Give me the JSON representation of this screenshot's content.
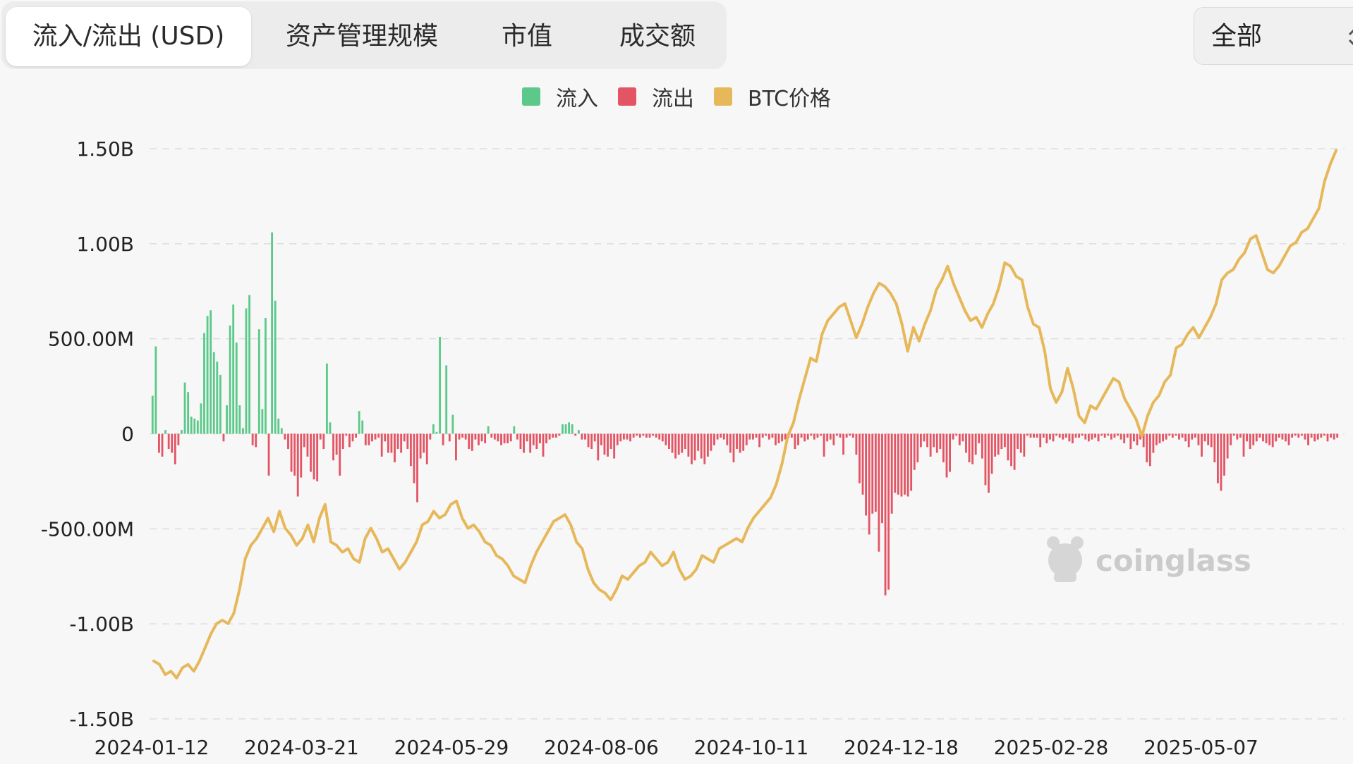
{
  "tabs": [
    {
      "label": "流入/流出 (USD)",
      "active": true
    },
    {
      "label": "资产管理规模",
      "active": false
    },
    {
      "label": "市值",
      "active": false
    },
    {
      "label": "成交额",
      "active": false
    }
  ],
  "filter": {
    "label": "全部"
  },
  "watermark": {
    "text": "coinglass"
  },
  "colors": {
    "inflow": "#5cc98a",
    "outflow": "#e35565",
    "price": "#e6b85a",
    "grid": "#dddddd"
  },
  "chart_data": {
    "type": "bar",
    "legend": [
      "流入",
      "流出",
      "BTC价格"
    ],
    "legend_position": "top-center",
    "grid": true,
    "ylim": [
      -1500000000,
      1500000000
    ],
    "y_ticks": [
      {
        "value": 1500000000,
        "label": "1.50B"
      },
      {
        "value": 1000000000,
        "label": "1.00B"
      },
      {
        "value": 500000000,
        "label": "500.00M"
      },
      {
        "value": 0,
        "label": "0"
      },
      {
        "value": -500000000,
        "label": "-500.00M"
      },
      {
        "value": -1000000000,
        "label": "-1.00B"
      },
      {
        "value": -1500000000,
        "label": "-1.50B"
      }
    ],
    "x_ticks": [
      "2024-01-12",
      "2024-03-21",
      "2024-05-29",
      "2024-08-06",
      "2024-10-11",
      "2024-12-18",
      "2025-02-28",
      "2025-05-07"
    ],
    "x_range": [
      "2024-01-12",
      "2025-07-14"
    ],
    "series": [
      {
        "name": "流入/流出",
        "sample_step": "2 trading days",
        "values_musd": [
          200,
          460,
          -100,
          -120,
          20,
          -80,
          -100,
          -160,
          -60,
          20,
          270,
          220,
          90,
          80,
          70,
          160,
          530,
          620,
          650,
          430,
          380,
          310,
          -40,
          150,
          570,
          680,
          480,
          150,
          30,
          660,
          730,
          -60,
          -70,
          550,
          130,
          610,
          -220,
          1060,
          700,
          80,
          30,
          -30,
          -80,
          -200,
          -220,
          -330,
          -230,
          -70,
          -120,
          -200,
          -240,
          -250,
          -30,
          -80,
          370,
          60,
          -140,
          -110,
          -220,
          -80,
          -10,
          -70,
          -40,
          -20,
          120,
          70,
          -60,
          -60,
          -40,
          -30,
          -20,
          -120,
          -40,
          -100,
          -100,
          -150,
          -80,
          -100,
          -40,
          -80,
          -170,
          -260,
          -360,
          -130,
          -100,
          -160,
          -30,
          50,
          10,
          510,
          -60,
          360,
          -40,
          100,
          -140,
          -30,
          -20,
          -30,
          -80,
          -90,
          -30,
          -60,
          -40,
          -50,
          40,
          -20,
          -30,
          -40,
          -60,
          -50,
          -50,
          -40,
          40,
          -30,
          -80,
          -100,
          -40,
          -100,
          -60,
          -80,
          -50,
          -120,
          -50,
          -30,
          -20,
          -20,
          -10,
          50,
          50,
          60,
          50,
          -10,
          20,
          -30,
          -30,
          -70,
          -80,
          -40,
          -140,
          -60,
          -110,
          -120,
          -80,
          -130,
          -60,
          -40,
          -30,
          -30,
          -40,
          -20,
          -10,
          -20,
          -10,
          -20,
          -20,
          -10,
          -20,
          -30,
          -40,
          -60,
          -80,
          -100,
          -130,
          -110,
          -100,
          -80,
          -120,
          -160,
          -140,
          -90,
          -130,
          -160,
          -120,
          -90,
          -60,
          -30,
          -20,
          -30,
          -60,
          -100,
          -150,
          -80,
          -100,
          -90,
          -60,
          -30,
          -30,
          -20,
          -70,
          -20,
          -10,
          -30,
          -20,
          -60,
          -50,
          -40,
          -30,
          -20,
          -20,
          -80,
          -60,
          -20,
          -40,
          -30,
          -10,
          -30,
          -20,
          -10,
          -120,
          -40,
          -30,
          -60,
          -10,
          -20,
          -110,
          -20,
          -10,
          -20,
          -110,
          -260,
          -320,
          -430,
          -530,
          -420,
          -410,
          -620,
          -470,
          -850,
          -820,
          -420,
          -310,
          -320,
          -330,
          -320,
          -330,
          -300,
          -190,
          -150,
          -70,
          -40,
          -70,
          -120,
          -70,
          -100,
          -80,
          -150,
          -230,
          -200,
          -30,
          -10,
          -60,
          -40,
          -100,
          -150,
          -160,
          -110,
          -50,
          -130,
          -270,
          -310,
          -210,
          -120,
          -110,
          -80,
          -70,
          -140,
          -170,
          -190,
          -80,
          -100,
          -120,
          -10,
          -20,
          -20,
          -20,
          -70,
          -20,
          -50,
          -30,
          -40,
          -10,
          -20,
          -30,
          -20,
          -40,
          -50,
          -20,
          -20,
          -10,
          -30,
          -40,
          -30,
          -20,
          -40,
          -10,
          -20,
          -10,
          -30,
          -20,
          -10,
          -30,
          -50,
          -20,
          -80,
          -40,
          -60,
          -30,
          -70,
          -150,
          -170,
          -100,
          -60,
          -50,
          -40,
          -30,
          -10,
          -20,
          -10,
          -30,
          -20,
          -40,
          -70,
          -30,
          -20,
          -60,
          -120,
          -40,
          -60,
          -70,
          -150,
          -260,
          -300,
          -220,
          -130,
          -60,
          -10,
          -30,
          -20,
          -120,
          -40,
          -80,
          -60,
          -40,
          -20,
          -40,
          -50,
          -60,
          -70,
          -40,
          -20,
          -30,
          -40,
          -60,
          -20,
          -10,
          -20,
          -10,
          -30,
          -60,
          -20,
          -40,
          -30,
          -20,
          -10,
          -40,
          -20,
          -30,
          -20
        ]
      },
      {
        "name": "BTC价格",
        "axis": "secondary (unlabeled)",
        "unit": "USD",
        "sample_step": "every 3rd bar",
        "values": [
          46500,
          46000,
          44500,
          45000,
          44000,
          45500,
          46000,
          45000,
          46500,
          48500,
          50500,
          52000,
          52500,
          52000,
          53500,
          57000,
          61500,
          63500,
          64500,
          66000,
          67500,
          65500,
          68500,
          66000,
          65000,
          63500,
          64500,
          66500,
          64000,
          67500,
          69500,
          64000,
          63500,
          62500,
          63000,
          61500,
          61000,
          64500,
          66000,
          64500,
          62500,
          63000,
          61500,
          60000,
          61000,
          62500,
          64000,
          66500,
          67000,
          68500,
          67500,
          68000,
          69500,
          70000,
          67500,
          66000,
          66500,
          65500,
          64000,
          63500,
          62000,
          61500,
          60500,
          59000,
          58500,
          58000,
          60500,
          62500,
          64000,
          65500,
          67000,
          67500,
          68000,
          66500,
          64000,
          63000,
          60000,
          58000,
          57000,
          56500,
          55500,
          57000,
          59000,
          58500,
          59500,
          60500,
          61000,
          62500,
          61500,
          60500,
          61000,
          62500,
          60000,
          58500,
          59000,
          60000,
          62000,
          61500,
          61000,
          63000,
          63500,
          64000,
          64500,
          64000,
          66000,
          67500,
          68500,
          69500,
          70500,
          72500,
          75500,
          79500,
          81500,
          85000,
          88000,
          91000,
          90500,
          94500,
          96500,
          97500,
          98500,
          99000,
          96500,
          94000,
          96000,
          98500,
          100500,
          102000,
          101500,
          100500,
          99000,
          96000,
          92000,
          95500,
          93500,
          96000,
          98000,
          101000,
          102500,
          104500,
          102000,
          100000,
          98000,
          96500,
          97000,
          95500,
          97500,
          99000,
          101500,
          105000,
          104500,
          103000,
          102500,
          98500,
          96000,
          95500,
          92000,
          86500,
          84500,
          86000,
          89500,
          86500,
          82500,
          81500,
          84000,
          83500,
          85000,
          86500,
          88000,
          87500,
          85000,
          83500,
          82000,
          79500,
          82500,
          84500,
          85500,
          87500,
          88500,
          92500,
          93000,
          94500,
          95500,
          94000,
          95500,
          97000,
          99000,
          102500,
          103500,
          104000,
          105500,
          106500,
          108500,
          109000,
          106500,
          104000,
          103500,
          104500,
          106000,
          107500,
          108000,
          109500,
          110000,
          111500,
          113000,
          117000,
          119500,
          121500
        ]
      }
    ]
  }
}
